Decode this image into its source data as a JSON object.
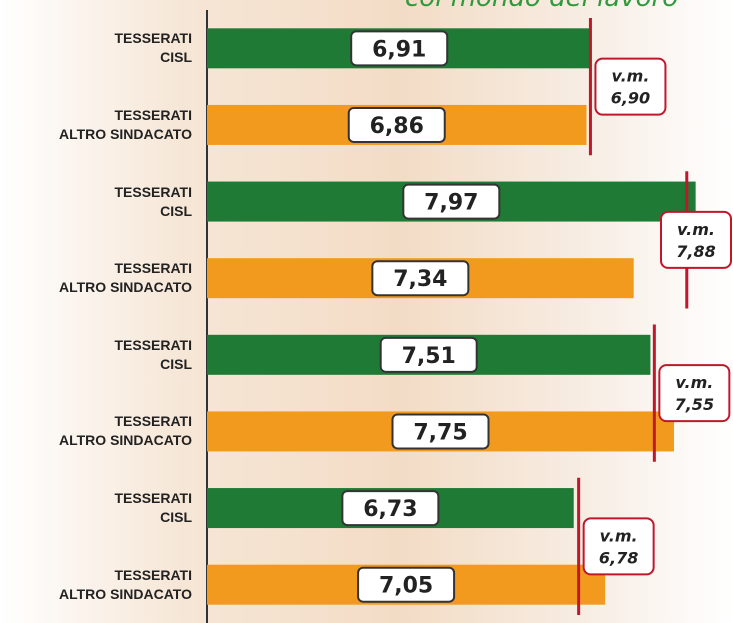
{
  "chart_data": {
    "type": "bar",
    "orientation": "horizontal",
    "title": "col mondo del lavoro",
    "categories": [
      "TESSERATI\nCISL",
      "TESSERATI\nALTRO SINDACATO",
      "TESSERATI\nCISL",
      "TESSERATI\nALTRO SINDACATO",
      "TESSERATI\nCISL",
      "TESSERATI\nALTRO SINDACATO",
      "TESSERATI\nCISL",
      "TESSERATI\nALTRO SINDACATO"
    ],
    "values": [
      6.91,
      6.86,
      7.97,
      7.34,
      7.51,
      7.75,
      6.73,
      7.05
    ],
    "value_labels": [
      "6,91",
      "6,86",
      "7,97",
      "7,34",
      "7,51",
      "7,75",
      "6,73",
      "7,05"
    ],
    "colors": [
      "#1f7a35",
      "#f29a1e",
      "#1f7a35",
      "#f29a1e",
      "#1f7a35",
      "#f29a1e",
      "#1f7a35",
      "#f29a1e"
    ],
    "xlim": [
      3,
      8.35
    ],
    "reference_lines": [
      {
        "label": "v.m.",
        "value": 6.9,
        "value_label": "6,90"
      },
      {
        "label": "v.m.",
        "value": 7.88,
        "value_label": "7,88"
      },
      {
        "label": "v.m.",
        "value": 7.55,
        "value_label": "7,55"
      },
      {
        "label": "v.m.",
        "value": 6.78,
        "value_label": "6,78"
      }
    ],
    "reference_color": "#c0172b"
  }
}
